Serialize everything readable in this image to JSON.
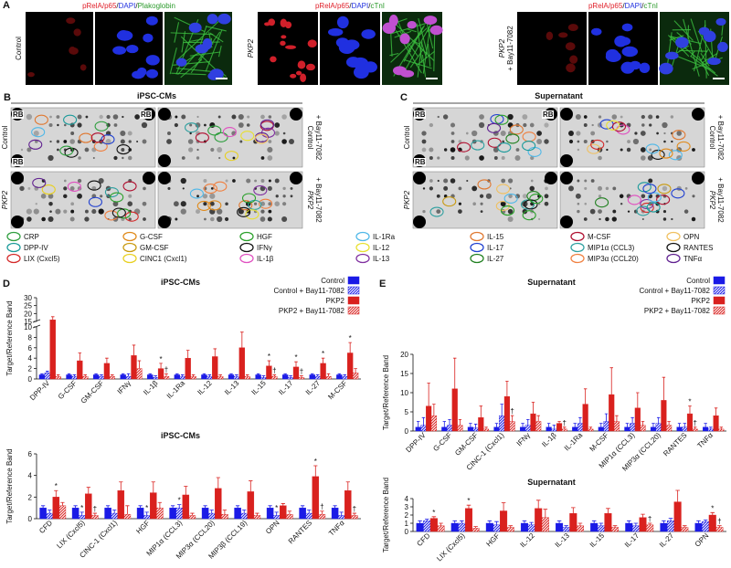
{
  "panel_a": {
    "label": "A",
    "groups": [
      {
        "caption": [
          "pRelA/p65",
          "/",
          "DAPI",
          "/",
          "Plakoglobin"
        ],
        "row_label": [
          "Control"
        ]
      },
      {
        "caption": [
          "pRelA/p65",
          "/",
          "DAPI",
          "/",
          "cTnI"
        ],
        "row_label": [
          "PKP2"
        ]
      },
      {
        "caption": [
          "pRelA/p65",
          "/",
          "DAPI",
          "/",
          "cTnI"
        ],
        "row_label": [
          "PKP2",
          "+ Bay11-7082"
        ]
      }
    ]
  },
  "panel_b": {
    "label": "B",
    "title": "iPSC-CMs",
    "reference": "RB",
    "left_labels": [
      "Control",
      "PKP2"
    ],
    "right_labels": [
      [
        "Control",
        "+ Bay11-7082"
      ],
      [
        "PKP2",
        "+ Bay11-7082"
      ]
    ]
  },
  "panel_c": {
    "label": "C",
    "title": "Supernatant",
    "reference": "RB",
    "left_labels": [
      "Control",
      "PKP2"
    ],
    "right_labels": [
      [
        "Control",
        "+ Bay11-7082"
      ],
      [
        "PKP2",
        "+ Bay11-7082"
      ]
    ]
  },
  "array_legend": [
    {
      "label": "CRP",
      "color": "#2e9e3e"
    },
    {
      "label": "DPP-IV",
      "color": "#1a9a9a"
    },
    {
      "label": "LIX (Cxcl5)",
      "color": "#d42a2a"
    },
    {
      "label": "G-CSF",
      "color": "#e08a1a"
    },
    {
      "label": "GM-CSF",
      "color": "#c89a10"
    },
    {
      "label": "CINC1 (Cxcl1)",
      "color": "#e8d020"
    },
    {
      "label": "HGF",
      "color": "#2aa02a"
    },
    {
      "label": "IFNγ",
      "color": "#111111"
    },
    {
      "label": "IL-1β",
      "color": "#e050c0"
    },
    {
      "label": "IL-1Ra",
      "color": "#50b8e8"
    },
    {
      "label": "IL-12",
      "color": "#e8e030"
    },
    {
      "label": "IL-13",
      "color": "#8030a0"
    },
    {
      "label": "IL-15",
      "color": "#e07830"
    },
    {
      "label": "IL-17",
      "color": "#2040d0"
    },
    {
      "label": "IL-27",
      "color": "#208020"
    },
    {
      "label": "M-CSF",
      "color": "#b01030"
    },
    {
      "label": "MIP1α (CCL3)",
      "color": "#30a0a0"
    },
    {
      "label": "MIP3α (CCL20)",
      "color": "#f08040"
    },
    {
      "label": "OPN",
      "color": "#f0c060"
    },
    {
      "label": "RANTES",
      "color": "#101010"
    },
    {
      "label": "TNFα",
      "color": "#602090"
    }
  ],
  "chart_data": [
    {
      "type": "bar",
      "panel": "D",
      "title": "iPSC-CMs",
      "ylabel": "Target/Reference Band",
      "legend": "upper right",
      "categories": [
        "DPP-IV",
        "G-CSF",
        "GM-CSF",
        "IFNγ",
        "IL-1β",
        "IL-1Ra",
        "IL-12",
        "IL-13",
        "IL-15",
        "IL-17",
        "IL-27",
        "M-CSF"
      ],
      "ylim": [
        0,
        30
      ],
      "axis_break": [
        10,
        15
      ],
      "yticks": [
        0,
        2,
        4,
        6,
        8,
        10,
        15,
        20,
        25,
        30
      ],
      "series": [
        {
          "name": "Control",
          "color": "#1a1ae6",
          "hatch": false,
          "values": [
            0.8,
            0.8,
            0.8,
            0.8,
            0.8,
            0.8,
            0.8,
            0.8,
            0.8,
            0.8,
            0.8,
            0.8
          ],
          "errors": [
            0.2,
            0.2,
            0.2,
            0.2,
            0.2,
            0.2,
            0.2,
            0.2,
            0.2,
            0.2,
            0.2,
            0.2
          ]
        },
        {
          "name": "Control + Bay11-7082",
          "color": "#1a1ae6",
          "hatch": true,
          "values": [
            1.2,
            0.5,
            0.5,
            0.5,
            0.3,
            0.5,
            0.5,
            0.5,
            0.3,
            0.3,
            0.5,
            0.5
          ],
          "errors": [
            0.3,
            0.3,
            0.3,
            0.5,
            0.3,
            0.3,
            0.3,
            0.3,
            0.3,
            0.3,
            0.3,
            0.3
          ]
        },
        {
          "name": "PKP2",
          "color": "#d9211e",
          "hatch": false,
          "values": [
            16,
            3.5,
            3,
            4.5,
            2,
            4,
            4.3,
            6,
            2.5,
            2.3,
            3,
            5
          ],
          "errors": [
            2,
            1.5,
            1,
            2,
            1,
            1.5,
            1.5,
            3,
            1,
            1,
            1,
            2
          ],
          "markers": [
            null,
            null,
            null,
            null,
            "*",
            null,
            null,
            null,
            "*",
            "*",
            "*",
            "*"
          ]
        },
        {
          "name": "PKP2 + Bay11-7082",
          "color": "#d9211e",
          "hatch": true,
          "values": [
            0.5,
            0.5,
            0.5,
            2,
            0.5,
            0.5,
            0.5,
            0.5,
            0.5,
            0.3,
            0.5,
            1.2
          ],
          "errors": [
            0.3,
            0.3,
            0.3,
            1.5,
            0.5,
            0.3,
            0.3,
            0.3,
            0.3,
            0.3,
            0.5,
            0.8
          ],
          "markers": [
            null,
            null,
            null,
            null,
            "†",
            null,
            null,
            null,
            "†",
            "†",
            null,
            null
          ]
        }
      ]
    },
    {
      "type": "bar",
      "title": "iPSC-CMs",
      "ylabel": "Target/Reference Band",
      "categories": [
        "CFD",
        "LIX (Cxcl5)",
        "CINC-1 (Cxcl1)",
        "HGF",
        "MIP1α (CCL3)",
        "MIP3α (CCL20)",
        "MIP3β (CCL19)",
        "OPN",
        "RANTES",
        "TNFα"
      ],
      "ylim": [
        0,
        6
      ],
      "yticks": [
        0,
        2,
        4,
        6
      ],
      "series": [
        {
          "color": "#1a1ae6",
          "hatch": false,
          "values": [
            1,
            1,
            1,
            1,
            1,
            1,
            1,
            1,
            1,
            1
          ],
          "errors": [
            0.2,
            0.2,
            0.2,
            0.2,
            0.2,
            0.2,
            0.2,
            0.2,
            0.2,
            0.2
          ]
        },
        {
          "color": "#1a1ae6",
          "hatch": true,
          "values": [
            0.5,
            0.3,
            0.5,
            0.3,
            1,
            0.5,
            0.5,
            0.3,
            0.5,
            0.3
          ],
          "errors": [
            0.3,
            0.3,
            0.3,
            0.3,
            0.3,
            0.3,
            0.3,
            0.3,
            0.3,
            0.3
          ],
          "markers": [
            null,
            "*",
            null,
            "*",
            "*",
            null,
            null,
            "*",
            null,
            null
          ]
        },
        {
          "color": "#d9211e",
          "hatch": false,
          "values": [
            2,
            2.3,
            2.6,
            2.4,
            2.2,
            2.8,
            2.5,
            1.2,
            3.9,
            2.6
          ],
          "errors": [
            0.6,
            0.6,
            0.8,
            1,
            0.8,
            1,
            1,
            0.2,
            1,
            0.8
          ],
          "markers": [
            "*",
            null,
            null,
            null,
            null,
            null,
            null,
            null,
            "*",
            null
          ]
        },
        {
          "color": "#d9211e",
          "hatch": true,
          "values": [
            1.2,
            0.3,
            0.4,
            1,
            0.3,
            0.4,
            0.3,
            0.4,
            0.4,
            0.3
          ],
          "errors": [
            0.3,
            0.2,
            0.8,
            0.5,
            0.2,
            0.4,
            0.2,
            0.3,
            0.3,
            0.2
          ],
          "markers": [
            null,
            "†",
            null,
            null,
            null,
            null,
            null,
            null,
            "†",
            "†"
          ]
        }
      ]
    },
    {
      "type": "bar",
      "panel": "E",
      "title": "Supernatant",
      "ylabel": "Target/Reference Band",
      "legend": "upper right",
      "categories": [
        "DPP-IV",
        "G-CSF",
        "GM-CSF",
        "CINC-1 (Cxcl1)",
        "IFNγ",
        "IL-1β",
        "IL-1Ra",
        "M-CSF",
        "MIP1α (CCL3)",
        "MIP3α (CCL20)",
        "RANTES",
        "TNFα"
      ],
      "ylim": [
        0,
        20
      ],
      "yticks": [
        0,
        5,
        10,
        15,
        20
      ],
      "series": [
        {
          "name": "Control",
          "color": "#1a1ae6",
          "hatch": false,
          "values": [
            1,
            1,
            1,
            1,
            1,
            1,
            1,
            1,
            1,
            1,
            1,
            1
          ],
          "errors": [
            1.5,
            1.5,
            1,
            1,
            1,
            1,
            1,
            1,
            1,
            1,
            1,
            1
          ]
        },
        {
          "name": "Control + Bay11-7082",
          "color": "#1a1ae6",
          "hatch": true,
          "values": [
            1.5,
            1.5,
            0.8,
            4,
            1.5,
            0.5,
            2,
            2.5,
            2,
            2,
            1,
            0.5
          ],
          "errors": [
            2,
            1.5,
            1,
            3,
            1.5,
            1,
            1.5,
            2,
            1.5,
            1.5,
            1,
            0.5
          ]
        },
        {
          "name": "PKP2",
          "color": "#d9211e",
          "hatch": false,
          "values": [
            6.5,
            11,
            3.5,
            9,
            4.5,
            2,
            7,
            9.5,
            6,
            8,
            4.5,
            4
          ],
          "errors": [
            6,
            8,
            3,
            4,
            3,
            0.5,
            4,
            7,
            4,
            6,
            2,
            2
          ],
          "markers": [
            null,
            null,
            null,
            null,
            null,
            null,
            null,
            null,
            null,
            null,
            "*",
            null
          ]
        },
        {
          "name": "PKP2 + Bay11-7082",
          "color": "#d9211e",
          "hatch": true,
          "values": [
            4,
            1.5,
            0.5,
            2.5,
            2.5,
            0.5,
            0.5,
            2.5,
            1.5,
            1.5,
            0.5,
            0.5
          ],
          "errors": [
            3,
            1.5,
            0.5,
            1.5,
            1.5,
            0.5,
            0.5,
            1.5,
            1,
            1,
            0.5,
            0.5
          ],
          "markers": [
            null,
            null,
            null,
            "†",
            null,
            "†",
            null,
            null,
            null,
            null,
            "†",
            null
          ]
        }
      ]
    },
    {
      "type": "bar",
      "title": "Supernatant",
      "ylabel": "Target/Reference Band",
      "categories": [
        "CFD",
        "LIX (Cxcl5)",
        "HGF",
        "IL-12",
        "IL-13",
        "IL-15",
        "IL-17",
        "IL-27",
        "OPN"
      ],
      "ylim": [
        0,
        4
      ],
      "yticks": [
        0,
        1,
        2,
        3,
        4
      ],
      "series": [
        {
          "color": "#1a1ae6",
          "hatch": false,
          "values": [
            1,
            1,
            1,
            1,
            1,
            1,
            1,
            1,
            1
          ],
          "errors": [
            0.3,
            0.3,
            0.3,
            0.3,
            0.3,
            0.3,
            0.3,
            0.3,
            0.3
          ]
        },
        {
          "color": "#1a1ae6",
          "hatch": true,
          "values": [
            1.3,
            1,
            0.8,
            0.8,
            0.5,
            0.7,
            0.7,
            1.3,
            1.2
          ],
          "errors": [
            0.2,
            0.3,
            0.4,
            0.3,
            0.2,
            0.3,
            0.3,
            0.3,
            0.2
          ]
        },
        {
          "color": "#d9211e",
          "hatch": false,
          "values": [
            1.6,
            2.8,
            2.5,
            2.8,
            2.2,
            2.2,
            1.7,
            3.6,
            2
          ],
          "errors": [
            0.2,
            0.4,
            1,
            1,
            0.7,
            0.6,
            0.4,
            1.4,
            0.3
          ],
          "markers": [
            "*",
            "*",
            null,
            null,
            null,
            null,
            null,
            null,
            "*"
          ]
        },
        {
          "color": "#d9211e",
          "hatch": true,
          "values": [
            0.7,
            0.4,
            0.5,
            1.7,
            0.7,
            0.5,
            0.8,
            0.5,
            0.5
          ],
          "errors": [
            0.3,
            0.2,
            0.2,
            1,
            0.3,
            0.2,
            0.2,
            0.2,
            0.2
          ],
          "markers": [
            null,
            null,
            null,
            null,
            null,
            null,
            "†",
            null,
            "†"
          ]
        }
      ]
    }
  ]
}
